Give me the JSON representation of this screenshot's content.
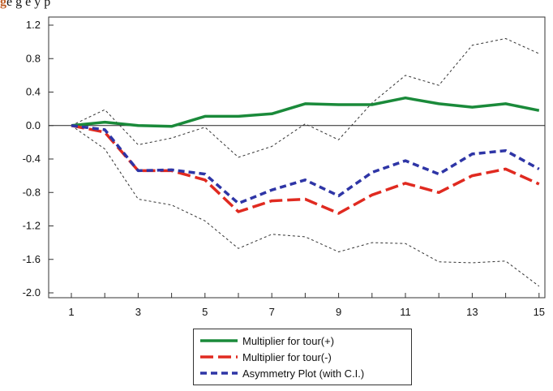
{
  "caption": {
    "lead": "g",
    "text": "e  g                          e                                          y                  p"
  },
  "chart_data": {
    "type": "line",
    "x": [
      1,
      2,
      3,
      4,
      5,
      6,
      7,
      8,
      9,
      10,
      11,
      12,
      13,
      14,
      15
    ],
    "xticks": [
      "1",
      "3",
      "5",
      "7",
      "9",
      "11",
      "13",
      "15"
    ],
    "yticks": [
      "1.2",
      "0.8",
      "0.4",
      "0.0",
      "-0.4",
      "-0.8",
      "-1.2",
      "-1.6",
      "-2.0"
    ],
    "xlim": [
      0.2,
      15.3
    ],
    "ylim": [
      -2.0,
      1.2
    ],
    "series": [
      {
        "name": "Multiplier for tour(+)",
        "color": "#1a8a3a",
        "style": "solid",
        "values": [
          0.0,
          0.04,
          0.0,
          -0.01,
          0.11,
          0.11,
          0.14,
          0.26,
          0.25,
          0.25,
          0.33,
          0.26,
          0.22,
          0.26,
          0.18
        ]
      },
      {
        "name": "Multiplier for tour(-)",
        "color": "#e02a20",
        "style": "longdash",
        "values": [
          0.0,
          -0.08,
          -0.54,
          -0.54,
          -0.65,
          -1.03,
          -0.9,
          -0.88,
          -1.05,
          -0.83,
          -0.69,
          -0.8,
          -0.6,
          -0.52,
          -0.7
        ]
      },
      {
        "name": "Asymmetry Plot (with C.I.)",
        "color": "#2e35a6",
        "style": "dash",
        "values": [
          0.0,
          -0.05,
          -0.54,
          -0.53,
          -0.58,
          -0.93,
          -0.77,
          -0.65,
          -0.84,
          -0.56,
          -0.42,
          -0.58,
          -0.34,
          -0.3,
          -0.52
        ]
      },
      {
        "name": "",
        "color": "#333333",
        "style": "dot",
        "legend": false,
        "values": [
          0.0,
          0.19,
          -0.23,
          -0.15,
          -0.02,
          -0.38,
          -0.25,
          0.02,
          -0.17,
          0.27,
          0.6,
          0.48,
          0.96,
          1.04,
          0.86
        ]
      },
      {
        "name": "",
        "color": "#333333",
        "style": "dot",
        "legend": false,
        "values": [
          0.0,
          -0.28,
          -0.88,
          -0.95,
          -1.14,
          -1.47,
          -1.3,
          -1.33,
          -1.51,
          -1.4,
          -1.41,
          -1.63,
          -1.64,
          -1.62,
          -1.92
        ]
      }
    ]
  },
  "legend": {
    "items": [
      {
        "label": "Multiplier for tour(+)",
        "color": "#1a8a3a",
        "style": "solid"
      },
      {
        "label": "Multiplier for tour(-)",
        "color": "#e02a20",
        "style": "longdash"
      },
      {
        "label": "Asymmetry Plot (with C.I.)",
        "color": "#2e35a6",
        "style": "dash"
      }
    ]
  }
}
